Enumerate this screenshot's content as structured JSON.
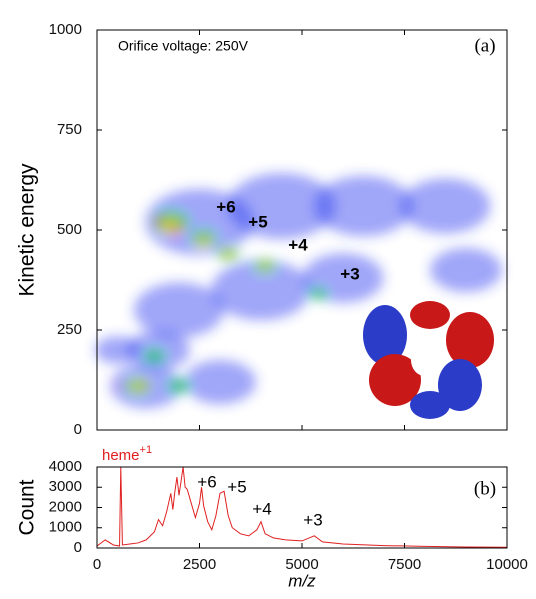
{
  "chart_data": [
    {
      "type": "bubble",
      "ylabel": "Kinetic energy",
      "note": "Orifice voltage: 250V",
      "panel": "(a)",
      "annotations": [
        "+6",
        "+5",
        "+4",
        "+3"
      ],
      "xlim": [
        0,
        10000
      ],
      "ylim": [
        0,
        1000
      ],
      "yticks": [
        0,
        250,
        500,
        750,
        1000
      ],
      "series": [
        {
          "color": "#2a3cf0",
          "x": [
            2500,
            4500,
            6500,
            8500,
            1200,
            3000,
            2000,
            4000,
            6000,
            9000,
            1500,
            500
          ],
          "y": [
            520,
            560,
            560,
            560,
            110,
            120,
            300,
            350,
            380,
            400,
            200,
            200
          ],
          "size": [
            60,
            60,
            55,
            50,
            40,
            40,
            50,
            55,
            45,
            40,
            35,
            25
          ]
        },
        {
          "color": "#28c060",
          "x": [
            1800,
            2600,
            3200,
            4100,
            5400,
            1000,
            1400,
            2000
          ],
          "y": [
            520,
            480,
            440,
            410,
            340,
            110,
            185,
            110
          ],
          "size": [
            20,
            14,
            12,
            12,
            10,
            14,
            12,
            12
          ]
        },
        {
          "color": "#e8e020",
          "x": [
            1800,
            2600,
            3200,
            4100,
            1000
          ],
          "y": [
            510,
            470,
            440,
            410,
            110
          ],
          "size": [
            12,
            8,
            7,
            6,
            8
          ]
        },
        {
          "color": "#e02020",
          "x": [
            1900,
            1500,
            600,
            1200
          ],
          "y": [
            500,
            520,
            110,
            110
          ],
          "size": [
            6,
            5,
            3,
            3
          ]
        }
      ]
    },
    {
      "type": "line",
      "ylabel": "Count",
      "xlabel": "m/z",
      "panel": "(b)",
      "heme": {
        "text": "heme",
        "sup": "+1"
      },
      "annotations": [
        "+6",
        "+5",
        "+4",
        "+3"
      ],
      "color": "#e02020",
      "xlim": [
        0,
        10000
      ],
      "xticks": [
        0,
        2500,
        5000,
        7500,
        10000
      ],
      "ylim": [
        0,
        4000
      ],
      "yticks": [
        0,
        1000,
        2000,
        3000,
        4000
      ],
      "x": [
        0,
        200,
        400,
        550,
        580,
        620,
        800,
        1000,
        1200,
        1400,
        1500,
        1600,
        1700,
        1800,
        1850,
        1900,
        1950,
        2000,
        2050,
        2100,
        2150,
        2200,
        2300,
        2400,
        2500,
        2550,
        2600,
        2700,
        2800,
        2900,
        3000,
        3100,
        3200,
        3300,
        3500,
        3700,
        3900,
        4000,
        4100,
        4300,
        4600,
        5000,
        5300,
        5500,
        6000,
        7000,
        8000,
        9000,
        10000
      ],
      "values": [
        100,
        400,
        150,
        100,
        4000,
        150,
        200,
        250,
        400,
        800,
        1400,
        1100,
        1800,
        2700,
        1900,
        2800,
        3500,
        2600,
        3300,
        4000,
        3000,
        2900,
        2200,
        1500,
        2200,
        3000,
        2100,
        1300,
        900,
        1600,
        2700,
        2800,
        1600,
        1000,
        700,
        600,
        900,
        1300,
        700,
        500,
        400,
        350,
        600,
        300,
        200,
        120,
        80,
        50,
        40
      ]
    }
  ]
}
